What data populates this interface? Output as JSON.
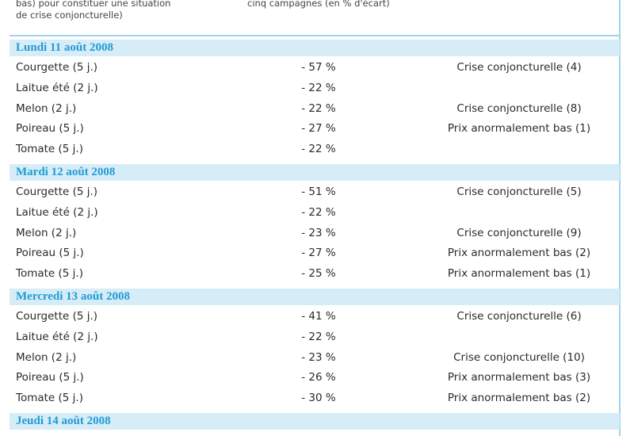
{
  "header": {
    "col1": [
      "bas) pour constituer une situation",
      "de crise conjoncturelle)"
    ],
    "col2": "cinq campagnes (en % d'écart)"
  },
  "sections": [
    {
      "title": "Lundi 11 août 2008",
      "rows": [
        [
          "Courgette (5 j.)",
          "- 57 %",
          "Crise conjoncturelle (4)"
        ],
        [
          "Laitue été (2 j.)",
          "- 22 %",
          ""
        ],
        [
          "Melon (2 j.)",
          "- 22 %",
          "Crise conjoncturelle (8)"
        ],
        [
          "Poireau (5 j.)",
          "- 27 %",
          "Prix anormalement bas (1)"
        ],
        [
          "Tomate (5 j.)",
          "- 22 %",
          ""
        ]
      ]
    },
    {
      "title": "Mardi 12 août 2008",
      "rows": [
        [
          "Courgette (5 j.)",
          "- 51 %",
          "Crise conjoncturelle (5)"
        ],
        [
          "Laitue été (2 j.)",
          "- 22 %",
          ""
        ],
        [
          "Melon (2 j.)",
          "- 23 %",
          "Crise conjoncturelle (9)"
        ],
        [
          "Poireau (5 j.)",
          "- 27 %",
          "Prix anormalement bas (2)"
        ],
        [
          "Tomate (5 j.)",
          "- 25 %",
          "Prix anormalement bas (1)"
        ]
      ]
    },
    {
      "title": "Mercredi 13 août 2008",
      "rows": [
        [
          "Courgette (5 j.)",
          "- 41 %",
          "Crise conjoncturelle (6)"
        ],
        [
          "Laitue été (2 j.)",
          "- 22 %",
          ""
        ],
        [
          "Melon (2 j.)",
          "- 23 %",
          "Crise conjoncturelle (10)"
        ],
        [
          "Poireau (5 j.)",
          "- 26 %",
          "Prix anormalement bas (3)"
        ],
        [
          "Tomate (5 j.)",
          "- 30 %",
          "Prix anormalement bas (2)"
        ]
      ]
    },
    {
      "title": "Jeudi 14 août 2008",
      "rows": []
    }
  ]
}
